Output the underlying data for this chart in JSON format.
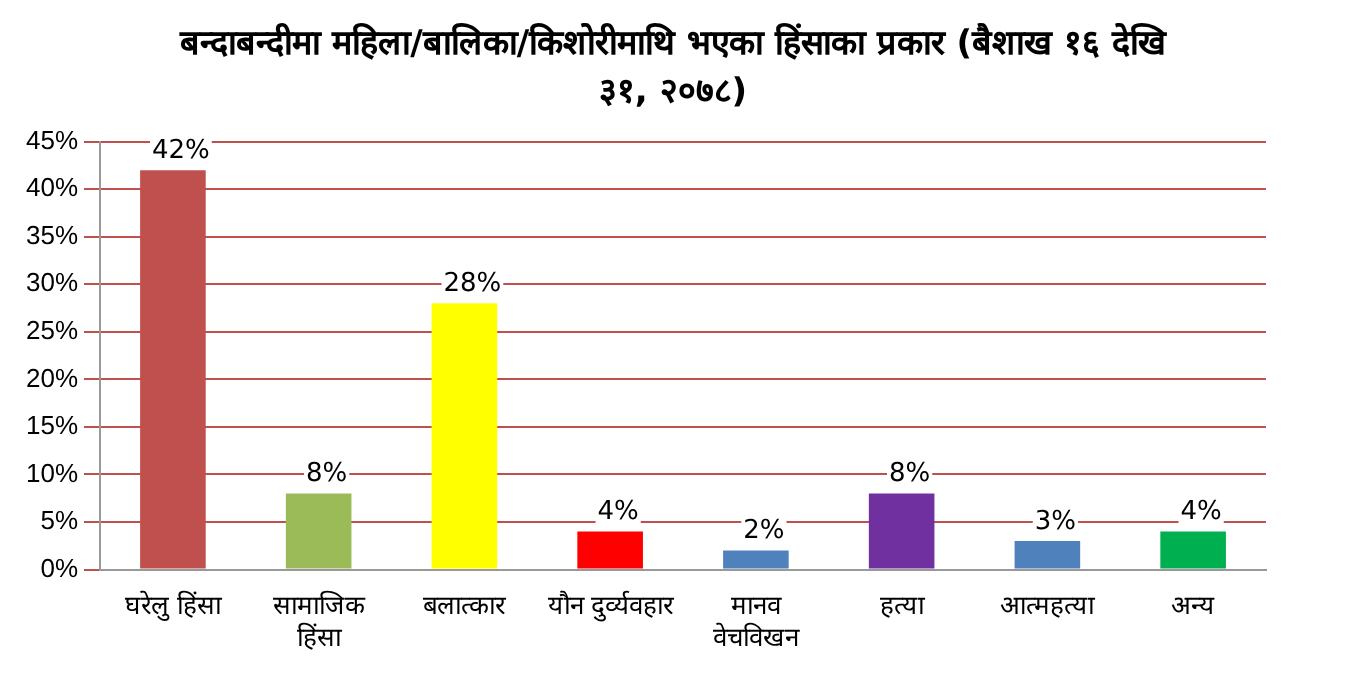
{
  "chart_data": {
    "type": "bar",
    "title": "बन्दाबन्दीमा महिला/बालिका/किशोरीमाथि भएका हिंसाका प्रकार (बैशाख १६ देखि ३१, २०७८)",
    "categories": [
      "घरेलु हिंसा",
      "सामाजिक हिंसा",
      "बलात्कार",
      "यौन दुर्व्यवहार",
      "मानव वेचविखन",
      "हत्या",
      "आत्महत्या",
      "अन्य"
    ],
    "values": [
      42,
      8,
      28,
      4,
      2,
      8,
      3,
      4
    ],
    "colors": [
      "#c0504d",
      "#9bbb59",
      "#ffff00",
      "#ff0000",
      "#4f81bd",
      "#7030a0",
      "#4f81bd",
      "#00b050"
    ],
    "value_labels": [
      "42%",
      "8%",
      "28%",
      "4%",
      "2%",
      "8%",
      "3%",
      "4%"
    ],
    "ylim": [
      0,
      45
    ],
    "yticks": [
      {
        "value": 0,
        "label": "0%"
      },
      {
        "value": 5,
        "label": "5%"
      },
      {
        "value": 10,
        "label": "10%"
      },
      {
        "value": 15,
        "label": "15%"
      },
      {
        "value": 20,
        "label": "20%"
      },
      {
        "value": 25,
        "label": "25%"
      },
      {
        "value": 30,
        "label": "30%"
      },
      {
        "value": 35,
        "label": "35%"
      },
      {
        "value": 40,
        "label": "40%"
      },
      {
        "value": 45,
        "label": "45%"
      }
    ],
    "grid": "y",
    "legend": false
  }
}
